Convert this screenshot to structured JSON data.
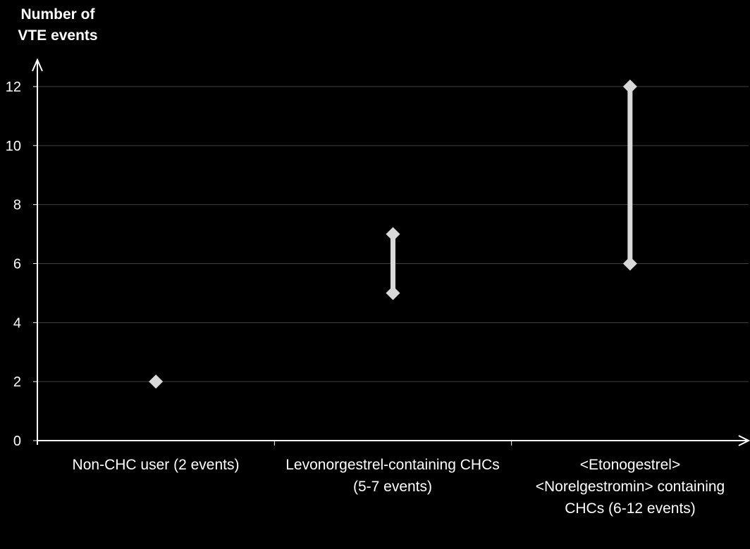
{
  "chart_data": {
    "type": "range",
    "ylabel": "Number of\nVTE events",
    "ylim": [
      0,
      12
    ],
    "yticks": [
      0,
      2,
      4,
      6,
      8,
      10,
      12
    ],
    "grid": true,
    "categories": [
      "Non-CHC user (2 events)",
      "Levonorgestrel-containing CHCs\n(5-7 events)",
      "<Etonogestrel>\n<Norelgestromin> containing\nCHCs (6-12 events)"
    ],
    "ranges": [
      {
        "low": 2,
        "high": 2
      },
      {
        "low": 5,
        "high": 7
      },
      {
        "low": 6,
        "high": 12
      }
    ],
    "colors": {
      "background": "#000000",
      "marker": "#d9d9d9",
      "axis": "#ffffff",
      "grid": "#404040"
    }
  }
}
